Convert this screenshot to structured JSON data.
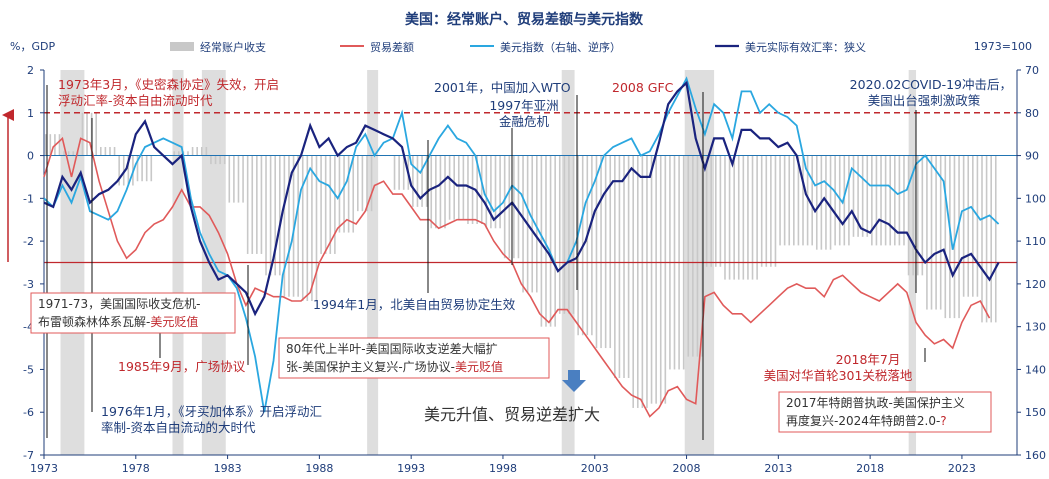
{
  "chart_data": {
    "type": "line",
    "title": "美国：经常账户、贸易差额与美元指数",
    "ylabel_left": "%，GDP",
    "ylabel_right_note": "1973=100",
    "x_range": [
      1973,
      2026
    ],
    "x_ticks": [
      "1973",
      "1978",
      "1983",
      "1988",
      "1993",
      "1998",
      "2003",
      "2008",
      "2013",
      "2018",
      "2023"
    ],
    "y_left_range": [
      -7,
      2
    ],
    "y_left_ticks": [
      "2",
      "1",
      "0",
      "-1",
      "-2",
      "-3",
      "-4",
      "-5",
      "-6",
      "-7"
    ],
    "y_right_range": [
      70,
      160
    ],
    "y_right_inverted": true,
    "y_right_ticks": [
      "70",
      "80",
      "90",
      "100",
      "110",
      "120",
      "130",
      "140",
      "150",
      "160"
    ],
    "legend": [
      {
        "name": "经常账户收支",
        "color": "#c8c8c8"
      },
      {
        "name": "贸易差额",
        "color": "#e05a5a"
      },
      {
        "name": "美元指数（右轴、逆序）",
        "color": "#2aa7e0"
      },
      {
        "name": "美元实际有效汇率：狭义",
        "color": "#1a237e"
      }
    ],
    "recessions": [
      [
        1973.9,
        1975.2
      ],
      [
        1980.0,
        1980.6
      ],
      [
        1981.6,
        1982.9
      ],
      [
        1990.6,
        1991.2
      ],
      [
        2001.2,
        2001.9
      ],
      [
        2007.9,
        2009.5
      ],
      [
        2020.1,
        2020.5
      ]
    ],
    "reference_lines": {
      "dashed_right_value": 80,
      "solid_left_value": -2.5,
      "solid_right_value": 90
    },
    "series": [
      {
        "name": "经常账户收支",
        "axis": "left",
        "x": [
          1973,
          1974,
          1975,
          1976,
          1977,
          1978,
          1979,
          1980,
          1981,
          1982,
          1983,
          1984,
          1985,
          1986,
          1987,
          1988,
          1989,
          1990,
          1991,
          1992,
          1993,
          1994,
          1995,
          1996,
          1997,
          1998,
          1999,
          2000,
          2001,
          2002,
          2003,
          2004,
          2005,
          2006,
          2007,
          2008,
          2009,
          2010,
          2011,
          2012,
          2013,
          2014,
          2015,
          2016,
          2017,
          2018,
          2019,
          2020,
          2021,
          2022,
          2023,
          2024
        ],
        "values": [
          0.5,
          0.1,
          1.0,
          0.2,
          -0.7,
          -0.6,
          0.0,
          0.1,
          0.2,
          -0.2,
          -1.1,
          -2.3,
          -2.8,
          -3.3,
          -3.4,
          -2.3,
          -1.8,
          -1.3,
          0.0,
          -0.8,
          -1.2,
          -1.7,
          -1.5,
          -1.6,
          -1.7,
          -2.4,
          -3.2,
          -4.0,
          -3.7,
          -4.2,
          -4.5,
          -5.2,
          -5.9,
          -5.8,
          -5.0,
          -4.7,
          -2.6,
          -2.9,
          -2.9,
          -2.6,
          -2.1,
          -2.1,
          -2.2,
          -2.1,
          -1.9,
          -2.1,
          -2.1,
          -2.8,
          -3.6,
          -3.8,
          -3.3,
          -3.9
        ]
      },
      {
        "name": "贸易差额",
        "axis": "left",
        "x": [
          1973,
          1973.5,
          1974,
          1974.5,
          1975,
          1975.5,
          1976,
          1976.5,
          1977,
          1977.5,
          1978,
          1978.5,
          1979,
          1979.5,
          1980,
          1980.5,
          1981,
          1981.5,
          1982,
          1982.5,
          1983,
          1983.5,
          1984,
          1984.5,
          1985,
          1985.5,
          1986,
          1986.5,
          1987,
          1987.5,
          1988,
          1988.5,
          1989,
          1989.5,
          1990,
          1990.5,
          1991,
          1991.5,
          1992,
          1992.5,
          1993,
          1993.5,
          1994,
          1994.5,
          1995,
          1995.5,
          1996,
          1996.5,
          1997,
          1997.5,
          1998,
          1998.5,
          1999,
          1999.5,
          2000,
          2000.5,
          2001,
          2001.5,
          2002,
          2002.5,
          2003,
          2003.5,
          2004,
          2004.5,
          2005,
          2005.5,
          2006,
          2006.5,
          2007,
          2007.5,
          2008,
          2008.5,
          2009,
          2009.5,
          2010,
          2010.5,
          2011,
          2011.5,
          2012,
          2012.5,
          2013,
          2013.5,
          2014,
          2014.5,
          2015,
          2015.5,
          2016,
          2016.5,
          2017,
          2017.5,
          2018,
          2018.5,
          2019,
          2019.5,
          2020,
          2020.5,
          2021,
          2021.5,
          2022,
          2022.5,
          2023,
          2023.5,
          2024,
          2024.5
        ],
        "values": [
          -0.5,
          0.2,
          0.4,
          -0.5,
          0.4,
          0.3,
          -0.6,
          -1.3,
          -2.0,
          -2.4,
          -2.2,
          -1.8,
          -1.6,
          -1.5,
          -1.2,
          -0.8,
          -1.2,
          -1.2,
          -1.4,
          -1.8,
          -2.3,
          -3.0,
          -3.5,
          -3.1,
          -3.2,
          -3.3,
          -3.3,
          -3.4,
          -3.4,
          -3.2,
          -2.5,
          -2.1,
          -1.7,
          -1.5,
          -1.6,
          -1.3,
          -0.7,
          -0.6,
          -0.9,
          -0.9,
          -1.2,
          -1.5,
          -1.5,
          -1.7,
          -1.6,
          -1.5,
          -1.5,
          -1.5,
          -1.6,
          -2.0,
          -2.3,
          -2.5,
          -3.0,
          -3.3,
          -3.7,
          -3.9,
          -3.6,
          -3.6,
          -3.9,
          -4.2,
          -4.5,
          -4.8,
          -5.1,
          -5.4,
          -5.6,
          -5.7,
          -6.1,
          -5.9,
          -5.5,
          -5.4,
          -5.7,
          -5.8,
          -3.3,
          -3.2,
          -3.5,
          -3.7,
          -3.7,
          -3.9,
          -3.7,
          -3.5,
          -3.3,
          -3.1,
          -3.0,
          -3.1,
          -3.1,
          -3.3,
          -2.9,
          -2.8,
          -3.0,
          -3.2,
          -3.3,
          -3.4,
          -3.2,
          -3.0,
          -3.2,
          -3.9,
          -4.2,
          -4.4,
          -4.3,
          -4.5,
          -3.9,
          -3.5,
          -3.4,
          -3.8
        ]
      },
      {
        "name": "美元指数（右轴、逆序）",
        "axis": "right",
        "x": [
          1973,
          1973.5,
          1974,
          1974.5,
          1975,
          1975.5,
          1976,
          1976.5,
          1977,
          1977.5,
          1978,
          1978.5,
          1979,
          1979.5,
          1980,
          1980.5,
          1981,
          1981.5,
          1982,
          1982.5,
          1983,
          1983.5,
          1984,
          1984.5,
          1985,
          1985.5,
          1986,
          1986.5,
          1987,
          1987.5,
          1988,
          1988.5,
          1989,
          1989.5,
          1990,
          1990.5,
          1991,
          1991.5,
          1992,
          1992.5,
          1993,
          1993.5,
          1994,
          1994.5,
          1995,
          1995.5,
          1996,
          1996.5,
          1997,
          1997.5,
          1998,
          1998.5,
          1999,
          1999.5,
          2000,
          2000.5,
          2001,
          2001.5,
          2002,
          2002.5,
          2003,
          2003.5,
          2004,
          2004.5,
          2005,
          2005.5,
          2006,
          2006.5,
          2007,
          2007.5,
          2008,
          2008.5,
          2009,
          2009.5,
          2010,
          2010.5,
          2011,
          2011.5,
          2012,
          2012.5,
          2013,
          2013.5,
          2014,
          2014.5,
          2015,
          2015.5,
          2016,
          2016.5,
          2017,
          2017.5,
          2018,
          2018.5,
          2019,
          2019.5,
          2020,
          2020.5,
          2021,
          2021.5,
          2022,
          2022.5,
          2023,
          2023.5,
          2024,
          2024.5,
          2025
        ],
        "values": [
          100,
          102,
          97,
          101,
          95,
          103,
          104,
          105,
          103,
          98,
          92,
          88,
          87,
          86,
          87,
          88,
          100,
          108,
          113,
          117,
          118,
          121,
          128,
          137,
          150,
          138,
          118,
          110,
          98,
          93,
          96,
          97,
          100,
          96,
          88,
          85,
          90,
          87,
          86,
          80,
          92,
          94,
          90,
          86,
          83,
          86,
          87,
          90,
          99,
          103,
          101,
          97,
          99,
          104,
          108,
          112,
          117,
          115,
          110,
          101,
          96,
          90,
          88,
          87,
          86,
          90,
          89,
          85,
          80,
          76,
          72,
          79,
          85,
          78,
          80,
          86,
          75,
          75,
          80,
          78,
          80,
          81,
          83,
          93,
          97,
          96,
          98,
          101,
          93,
          95,
          97,
          97,
          97,
          99,
          98,
          92,
          90,
          93,
          96,
          112,
          103,
          102,
          105,
          104,
          106
        ]
      },
      {
        "name": "美元实际有效汇率：狭义",
        "axis": "right",
        "x": [
          1973,
          1973.5,
          1974,
          1974.5,
          1975,
          1975.5,
          1976,
          1976.5,
          1977,
          1977.5,
          1978,
          1978.5,
          1979,
          1979.5,
          1980,
          1980.5,
          1981,
          1981.5,
          1982,
          1982.5,
          1983,
          1983.5,
          1984,
          1984.5,
          1985,
          1985.5,
          1986,
          1986.5,
          1987,
          1987.5,
          1988,
          1988.5,
          1989,
          1989.5,
          1990,
          1990.5,
          1991,
          1991.5,
          1992,
          1992.5,
          1993,
          1993.5,
          1994,
          1994.5,
          1995,
          1995.5,
          1996,
          1996.5,
          1997,
          1997.5,
          1998,
          1998.5,
          1999,
          1999.5,
          2000,
          2000.5,
          2001,
          2001.5,
          2002,
          2002.5,
          2003,
          2003.5,
          2004,
          2004.5,
          2005,
          2005.5,
          2006,
          2006.5,
          2007,
          2007.5,
          2008,
          2008.5,
          2009,
          2009.5,
          2010,
          2010.5,
          2011,
          2011.5,
          2012,
          2012.5,
          2013,
          2013.5,
          2014,
          2014.5,
          2015,
          2015.5,
          2016,
          2016.5,
          2017,
          2017.5,
          2018,
          2018.5,
          2019,
          2019.5,
          2020,
          2020.5,
          2021,
          2021.5,
          2022,
          2022.5,
          2023,
          2023.5,
          2024,
          2024.5,
          2025
        ],
        "values": [
          101,
          102,
          95,
          98,
          94,
          101,
          99,
          98,
          96,
          93,
          85,
          82,
          88,
          90,
          92,
          90,
          102,
          110,
          115,
          119,
          118,
          120,
          122,
          127,
          123,
          114,
          103,
          94,
          90,
          83,
          88,
          86,
          90,
          88,
          87,
          83,
          84,
          85,
          86,
          88,
          97,
          100,
          98,
          97,
          95,
          97,
          97,
          98,
          101,
          105,
          103,
          101,
          104,
          107,
          110,
          113,
          117,
          115,
          114,
          110,
          103,
          99,
          96,
          96,
          93,
          95,
          95,
          87,
          78,
          75,
          73,
          86,
          93,
          86,
          86,
          92,
          84,
          84,
          86,
          86,
          88,
          87,
          90,
          99,
          103,
          100,
          103,
          106,
          103,
          107,
          108,
          105,
          106,
          108,
          108,
          112,
          115,
          113,
          112,
          118,
          114,
          113,
          116,
          119,
          115
        ]
      }
    ],
    "annotations": [
      {
        "text": "1973年3月，《史密森协定》失效，开启",
        "color": "red"
      },
      {
        "text": "浮动汇率-资本自由流动时代",
        "color": "red"
      },
      {
        "text": "2001年，中国加入WTO",
        "color": "blue"
      },
      {
        "text": "1997年亚洲",
        "color": "blue"
      },
      {
        "text": "金融危机",
        "color": "blue"
      },
      {
        "text": "2008 GFC",
        "color": "red"
      },
      {
        "text": "2020.02COVID-19冲击后，",
        "color": "blue"
      },
      {
        "text": "美国出台强刺激政策",
        "color": "blue"
      },
      {
        "text": "1994年1月，北美自由贸易协定生效",
        "color": "blue"
      },
      {
        "text": "1985年9月，广场协议",
        "color": "red"
      },
      {
        "text": "1976年1月，《牙买加体系》开启浮动汇",
        "color": "blue"
      },
      {
        "text": "率制-资本自由流动的大时代",
        "color": "blue"
      },
      {
        "text": "美元升值、贸易逆差扩大",
        "color": "dark"
      },
      {
        "text": "2018年7月",
        "color": "red"
      },
      {
        "text": "美国对华首轮301关税落地",
        "color": "red"
      }
    ],
    "callouts": [
      {
        "lines": [
          "1971-73，美国国际收支危机-",
          "布雷顿森林体系瓦解-"
        ],
        "highlight": "美元贬值"
      },
      {
        "lines": [
          "80年代上半叶-美国国际收支逆差大幅扩",
          "张-美国保护主义复兴-广场协议-"
        ],
        "highlight": "美元贬值"
      },
      {
        "lines": [
          "2017年特朗普执政-美国保护主义",
          "再度复兴-2024年特朗普2.0-"
        ],
        "highlight": "?"
      }
    ]
  }
}
